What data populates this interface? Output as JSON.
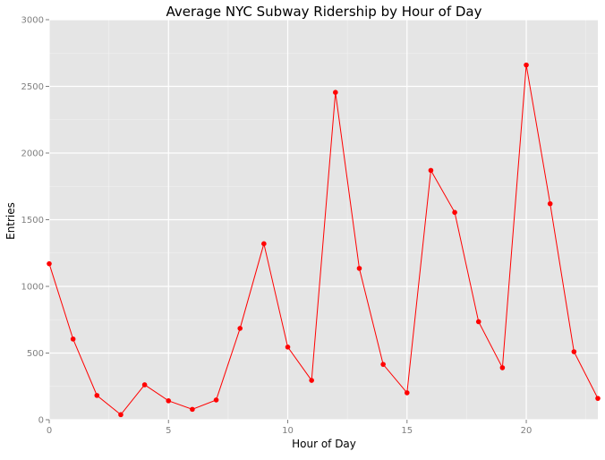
{
  "chart_data": {
    "type": "line",
    "title": "Average NYC Subway Ridership by Hour of Day",
    "xlabel": "Hour of Day",
    "ylabel": "Entries",
    "xlim": [
      0,
      23
    ],
    "ylim": [
      0,
      3000
    ],
    "x_ticks": [
      0,
      5,
      10,
      15,
      20
    ],
    "y_ticks": [
      0,
      500,
      1000,
      1500,
      2000,
      2500,
      3000
    ],
    "grid": true,
    "legend": "none",
    "series": [
      {
        "x": [
          0,
          1,
          2,
          3,
          4,
          5,
          6,
          7,
          8,
          9,
          10,
          11,
          12,
          13,
          14,
          15,
          16,
          17,
          18,
          19,
          20,
          21,
          22,
          23
        ],
        "values": [
          1170,
          605,
          182,
          38,
          262,
          142,
          78,
          148,
          685,
          1320,
          545,
          295,
          2455,
          1135,
          415,
          202,
          1870,
          1555,
          735,
          390,
          2660,
          1620,
          510,
          160
        ]
      }
    ],
    "colors": {
      "panel_background": "#e5e5e5",
      "grid_major": "#ffffff",
      "grid_minor": "#f2f2f2",
      "line": "#ff0000",
      "points": "#ff0000",
      "tick_label": "#7f7f7f",
      "text": "#000000"
    }
  }
}
